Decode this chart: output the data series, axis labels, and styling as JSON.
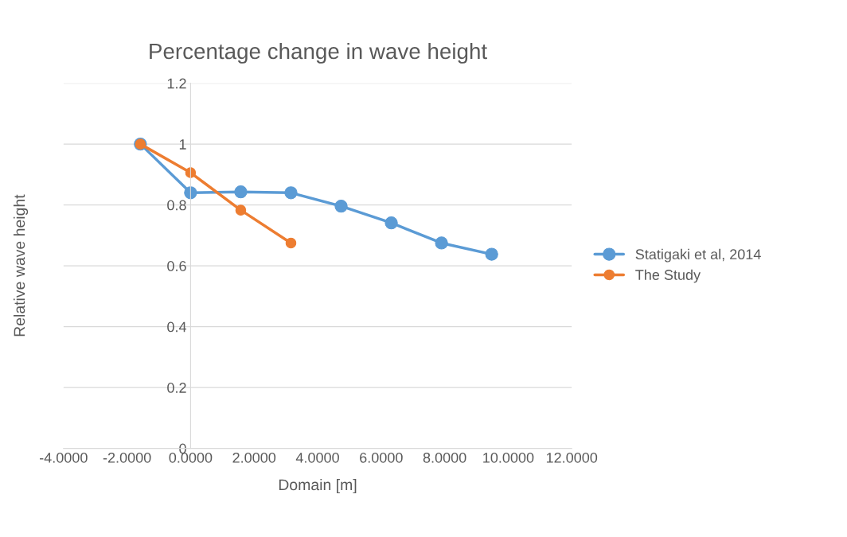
{
  "chart_data": {
    "type": "line",
    "title": "Percentage change in wave height",
    "xlabel": "Domain [m]",
    "ylabel": "Relative wave height",
    "series": [
      {
        "name": "Statigaki et al, 2014",
        "color": "#5b9bd5",
        "x": [
          -1.58,
          0,
          1.58,
          3.16,
          4.74,
          6.32,
          7.9,
          9.48
        ],
        "values": [
          1.0,
          0.84,
          0.843,
          0.84,
          0.796,
          0.741,
          0.675,
          0.638
        ]
      },
      {
        "name": "The Study",
        "color": "#ed7d31",
        "x": [
          -1.58,
          0,
          1.58,
          3.16
        ],
        "values": [
          1.0,
          0.906,
          0.783,
          0.675
        ]
      }
    ],
    "xlim": [
      -4,
      12
    ],
    "xticks": [
      {
        "value": -4,
        "label": "-4.0000"
      },
      {
        "value": -2,
        "label": "-2.0000"
      },
      {
        "value": 0,
        "label": "0.0000"
      },
      {
        "value": 2,
        "label": "2.0000"
      },
      {
        "value": 4,
        "label": "4.0000"
      },
      {
        "value": 6,
        "label": "6.0000"
      },
      {
        "value": 8,
        "label": "8.0000"
      },
      {
        "value": 10,
        "label": "10.0000"
      },
      {
        "value": 12,
        "label": "12.0000"
      }
    ],
    "ylim": [
      0,
      1.2
    ],
    "yticks": [
      0,
      0.2,
      0.4,
      0.6,
      0.8,
      1,
      1.2
    ],
    "grid": "y",
    "legend": "right",
    "marker": "circle",
    "line_style": "solid"
  }
}
